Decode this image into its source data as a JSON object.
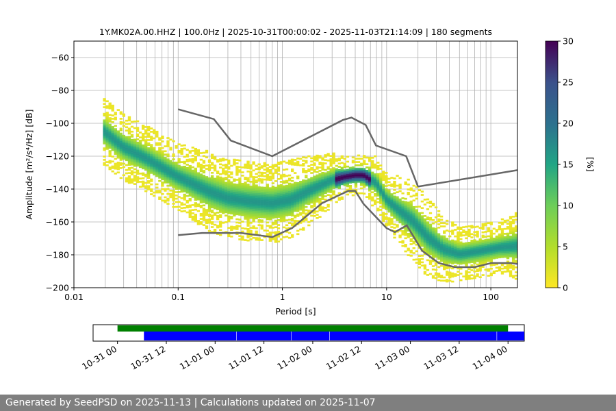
{
  "chart_data": [
    {
      "type": "heatmap",
      "title": "1Y.MK02A.00.HHZ | 100.0Hz | 2025-10-31T00:00:02 - 2025-11-03T21:14:09 | 180 segments",
      "xlabel": "Period [s]",
      "ylabel": "Amplitude [m²/s⁴/Hz] [dB]",
      "xscale": "log",
      "xlim": [
        0.01,
        180
      ],
      "ylim": [
        -200,
        -50
      ],
      "x_ticks": [
        0.01,
        0.1,
        1,
        10,
        100
      ],
      "x_tick_labels": [
        "0.01",
        "0.1",
        "1",
        "10",
        "100"
      ],
      "y_ticks": [
        -200,
        -180,
        -160,
        -140,
        -120,
        -100,
        -80,
        -60
      ],
      "y_tick_labels": [
        "−200",
        "−180",
        "−160",
        "−140",
        "−120",
        "−100",
        "−80",
        "−60"
      ],
      "grid": true,
      "colorbar": {
        "label": "[%]",
        "range": [
          0,
          30
        ],
        "ticks": [
          0,
          5,
          10,
          15,
          20,
          25,
          30
        ],
        "tick_labels": [
          "0",
          "5",
          "10",
          "15",
          "20",
          "25",
          "30"
        ],
        "colormap": "viridis_r"
      },
      "psd_mode": {
        "period": [
          0.019,
          0.03,
          0.05,
          0.1,
          0.2,
          0.3,
          0.5,
          0.8,
          1.2,
          2.0,
          3.0,
          4.0,
          5.0,
          6.0,
          8.0,
          10,
          13,
          18,
          25,
          35,
          50,
          80,
          120,
          180
        ],
        "db": [
          -105,
          -115,
          -122,
          -133,
          -142,
          -146,
          -148,
          -149,
          -147,
          -140,
          -135,
          -133,
          -132,
          -132,
          -137,
          -147,
          -153,
          -160,
          -170,
          -177,
          -180,
          -178,
          -176,
          -175
        ],
        "spread_db": [
          5,
          5,
          5,
          5,
          6,
          6,
          6,
          6,
          6,
          5,
          4,
          3,
          3,
          3,
          4,
          4,
          5,
          6,
          6,
          5,
          4,
          4,
          4,
          5
        ]
      },
      "high_noise_model": {
        "period": [
          0.1,
          0.22,
          0.32,
          0.8,
          3.8,
          4.6,
          6.3,
          7.9,
          15.4,
          20
        ],
        "db": [
          -91.5,
          -97.4,
          -110.5,
          -120,
          -98,
          -96.5,
          -101,
          -113.5,
          -120,
          -138.5
        ]
      },
      "high_noise_model_tail": {
        "period": [
          20,
          180
        ],
        "db": [
          -138.5,
          -128.5
        ]
      },
      "low_noise_model": {
        "period": [
          0.1,
          0.17,
          0.4,
          0.8,
          1.24,
          2.4,
          4.3,
          5.0,
          6.0,
          10,
          12,
          15.6,
          21.9,
          31.6,
          45,
          70,
          101,
          154,
          180
        ],
        "db": [
          -168,
          -166.7,
          -166.7,
          -169.2,
          -163.7,
          -148.6,
          -141.1,
          -141.1,
          -149,
          -163.8,
          -166.2,
          -162.1,
          -177.5,
          -185,
          -187.5,
          -187.5,
          -185,
          -185,
          -185.5
        ]
      },
      "vertical_lines_period": [
        0.02,
        0.03,
        0.04,
        0.05,
        0.06,
        0.07,
        0.08,
        0.09,
        0.2,
        0.3,
        0.4,
        0.5,
        0.6,
        0.7,
        0.8,
        0.9,
        2,
        3,
        4,
        5,
        6,
        7,
        8,
        9,
        20,
        30,
        40,
        50,
        60,
        70,
        80,
        90
      ],
      "colors": {
        "noise_model": "#666666",
        "grid": "#b0b0b0"
      }
    },
    {
      "type": "bar",
      "subtype": "data-availability timeline",
      "x_tick_labels": [
        "10-31 00",
        "10-31 12",
        "11-01 00",
        "11-01 12",
        "11-02 00",
        "11-02 12",
        "11-03 00",
        "11-03 12",
        "11-04 00"
      ],
      "x_ticks_hours": [
        0,
        12,
        24,
        36,
        48,
        60,
        72,
        84,
        96
      ],
      "xlim_hours": [
        -6,
        100
      ],
      "coverage_bar": {
        "start_hours": 0,
        "end_hours": 96,
        "color": "#008000"
      },
      "segments_hours": [
        [
          6.5,
          29.2
        ],
        [
          29.3,
          42.7
        ],
        [
          42.8,
          52.1
        ],
        [
          52.2,
          93.2
        ],
        [
          93.3,
          100
        ]
      ],
      "segment_color": "#0000ff"
    }
  ],
  "footer": {
    "text": "Generated by SeedPSD on 2025-11-13 | Calculations updated on 2025-11-07"
  }
}
